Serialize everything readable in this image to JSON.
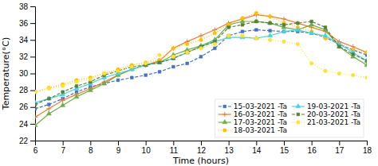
{
  "chart_data": {
    "type": "line",
    "xlabel": "Time (hours)",
    "ylabel": "Temperature(°C)",
    "xlim": [
      6,
      18
    ],
    "ylim": [
      22,
      38
    ],
    "xticks": [
      6,
      7,
      8,
      9,
      10,
      11,
      12,
      13,
      14,
      15,
      16,
      17,
      18
    ],
    "yticks": [
      22,
      24,
      26,
      28,
      30,
      32,
      34,
      36,
      38
    ],
    "grid": false,
    "legend": "lower right",
    "x": [
      6,
      6.5,
      7,
      7.5,
      8,
      8.5,
      9,
      9.5,
      10,
      10.5,
      11,
      11.5,
      12,
      12.5,
      13,
      13.5,
      14,
      14.5,
      15,
      15.5,
      16,
      16.5,
      17,
      17.5,
      18
    ],
    "series": [
      {
        "name": "15-03-2021 -Ta",
        "color": "#4472c4",
        "marker": "square",
        "line_style": "dashed",
        "values": [
          25.8,
          26.3,
          27.0,
          27.8,
          28.4,
          28.8,
          29.2,
          29.5,
          29.8,
          30.2,
          30.8,
          31.2,
          32.0,
          33.0,
          34.5,
          35.0,
          35.2,
          35.1,
          35.0,
          35.0,
          34.8,
          34.3,
          33.5,
          32.8,
          32.2
        ]
      },
      {
        "name": "16-03-2021 -Ta",
        "color": "#ed7d31",
        "marker": "plus",
        "line_style": "solid",
        "values": [
          24.8,
          25.8,
          26.8,
          27.5,
          28.2,
          29.0,
          29.8,
          30.5,
          31.0,
          31.5,
          33.0,
          33.8,
          34.5,
          35.2,
          36.0,
          36.5,
          37.0,
          36.8,
          36.5,
          36.0,
          35.5,
          35.0,
          33.8,
          33.2,
          32.5
        ]
      },
      {
        "name": "17-03-2021 -Ta",
        "color": "#70ad47",
        "marker": "triangle",
        "line_style": "solid",
        "values": [
          23.8,
          25.2,
          26.2,
          27.2,
          28.0,
          28.8,
          29.8,
          30.5,
          31.0,
          31.3,
          32.2,
          32.8,
          33.3,
          34.0,
          35.8,
          36.2,
          36.2,
          36.0,
          35.5,
          35.2,
          35.8,
          35.2,
          33.2,
          32.0,
          31.0
        ]
      },
      {
        "name": "18-03-2021 -Ta",
        "color": "#ffc000",
        "marker": "circle",
        "line_style": "dotted",
        "values": [
          27.8,
          28.3,
          28.7,
          29.2,
          29.5,
          30.0,
          30.5,
          31.0,
          31.3,
          31.6,
          33.0,
          33.5,
          34.0,
          34.8,
          35.8,
          36.6,
          37.2,
          36.8,
          36.0,
          35.5,
          35.0,
          34.2,
          33.5,
          32.8,
          32.5
        ]
      },
      {
        "name": "19-03-2021 -Ta",
        "color": "#4dd0e1",
        "marker": "triangle",
        "line_style": "solid",
        "values": [
          26.5,
          27.0,
          27.5,
          28.2,
          28.8,
          29.5,
          30.0,
          30.5,
          31.0,
          31.3,
          31.8,
          32.5,
          33.2,
          33.8,
          34.3,
          34.3,
          34.2,
          34.5,
          35.0,
          35.2,
          34.8,
          34.5,
          33.5,
          32.5,
          31.5
        ]
      },
      {
        "name": "20-03-2021 -Ta",
        "color": "#548235",
        "marker": "square",
        "line_style": "dashed",
        "values": [
          26.3,
          27.0,
          27.8,
          28.5,
          29.0,
          29.8,
          30.3,
          30.8,
          31.0,
          31.3,
          31.8,
          32.5,
          33.2,
          33.8,
          35.5,
          35.8,
          36.2,
          36.0,
          35.8,
          36.0,
          36.2,
          35.5,
          33.2,
          32.3,
          31.5
        ]
      },
      {
        "name": "21-03-2021 -Ta",
        "color": "#ffe135",
        "marker": "circle",
        "line_style": "dotted",
        "values": [
          27.8,
          28.2,
          28.5,
          29.0,
          29.3,
          30.0,
          30.3,
          30.8,
          31.2,
          32.2,
          32.0,
          32.5,
          33.0,
          33.5,
          34.5,
          34.5,
          34.2,
          34.0,
          33.8,
          33.5,
          31.2,
          30.3,
          30.0,
          29.8,
          29.5
        ]
      }
    ]
  }
}
